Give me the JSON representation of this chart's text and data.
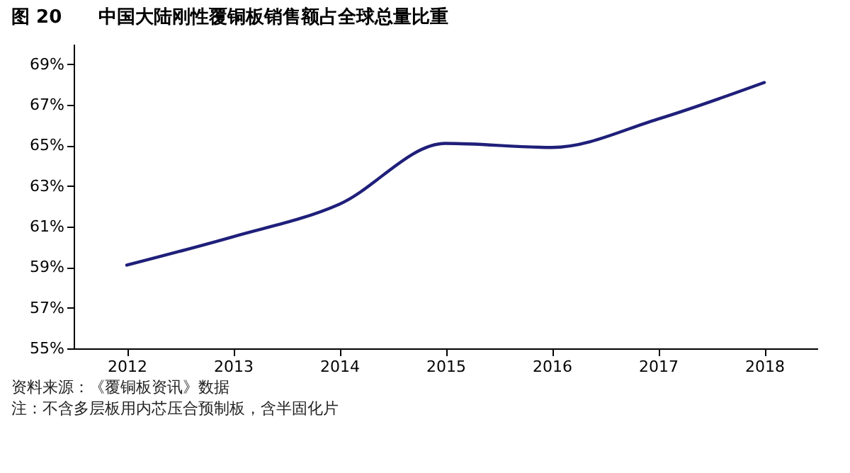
{
  "chart_data": {
    "type": "line",
    "title": "图 20　　中国大陆刚性覆铜板销售额占全球总量比重",
    "categories": [
      "2012",
      "2013",
      "2014",
      "2015",
      "2016",
      "2017",
      "2018"
    ],
    "series": [
      {
        "color": "#1f1f7a",
        "values": [
          59.1,
          60.5,
          62.1,
          65.1,
          64.9,
          66.3,
          68.1
        ]
      }
    ],
    "ylim": [
      55,
      70
    ],
    "yticks": [
      {
        "value": 55,
        "label": "55%"
      },
      {
        "value": 57,
        "label": "57%"
      },
      {
        "value": 59,
        "label": "59%"
      },
      {
        "value": 61,
        "label": "61%"
      },
      {
        "value": 63,
        "label": "63%"
      },
      {
        "value": 65,
        "label": "65%"
      },
      {
        "value": 67,
        "label": "67%"
      },
      {
        "value": 69,
        "label": "69%"
      }
    ],
    "grid": false,
    "marker": "none",
    "line_style": "solid",
    "annotations": [
      "资料来源：《覆铜板资讯》数据",
      "注：不含多层板用内芯压合预制板，含半固化片"
    ]
  }
}
